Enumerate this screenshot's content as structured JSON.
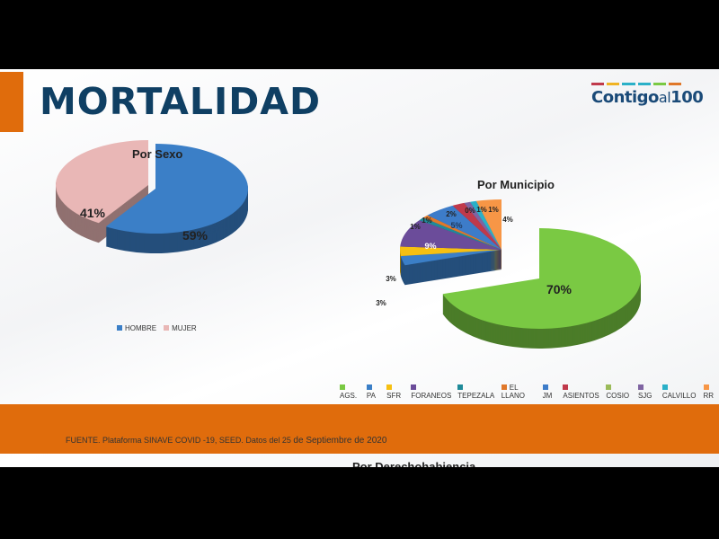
{
  "slide": {
    "title": "MORTALIDAD",
    "logo_text": "Contigo al 100",
    "logo_main": "Contigo",
    "logo_mid": "al",
    "logo_num": "100",
    "source": "FUENTE. Plataforma SINAVE COVID -19, SEED. Datos del 25 ",
    "source_date": "de Septiembre de 2020",
    "next_title": "Por Derechohabiencia",
    "accent": "#e06c0c"
  },
  "chart_data": [
    {
      "type": "pie",
      "title": "Por Sexo",
      "three_d": true,
      "legend": "bottom",
      "categories": [
        "HOMBRE",
        "MUJER"
      ],
      "values": [
        59,
        41
      ],
      "labels": [
        "59%",
        "41%"
      ],
      "colors": [
        "#3b7fc7",
        "#e9b7b6"
      ]
    },
    {
      "type": "pie",
      "title": "Por Municipio",
      "three_d": true,
      "legend": "bottom",
      "categories": [
        "AGS.",
        "PA",
        "SFR",
        "FORANEOS",
        "TEPEZALA",
        "EL LLANO",
        "JM",
        "ASIENTOS",
        "COSIO",
        "SJG",
        "CALVILLO",
        "RR"
      ],
      "values": [
        70,
        3,
        3,
        9,
        1,
        1,
        5,
        2,
        0,
        1,
        1,
        4
      ],
      "labels": [
        "70%",
        "3%",
        "3%",
        "9%",
        "1%",
        "1%",
        "5%",
        "2%",
        "0%",
        "1%",
        "1%",
        "4%"
      ],
      "colors": [
        "#7ac943",
        "#3b7fc7",
        "#f6c012",
        "#6b4c9a",
        "#1f8a99",
        "#e0782a",
        "#3d7cc9",
        "#c0394b",
        "#9bbb59",
        "#7f64a2",
        "#2ab0c8",
        "#f79646"
      ]
    }
  ]
}
